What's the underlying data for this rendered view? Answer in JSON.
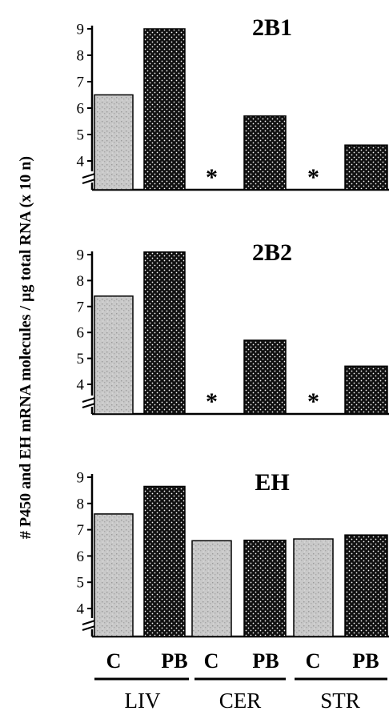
{
  "chart_data": {
    "type": "bar",
    "ylabel": "# P450 and EH mRNA molecules / µg total RNA (x 10 n)",
    "y_ticks": [
      "4",
      "5",
      "6",
      "7",
      "8",
      "9"
    ],
    "x_categories": [
      "C",
      "PB",
      "C",
      "PB",
      "C",
      "PB"
    ],
    "groups": [
      "LIV",
      "CER",
      "STR"
    ],
    "group_members": [
      [
        0,
        1
      ],
      [
        2,
        3
      ],
      [
        4,
        5
      ]
    ],
    "treatment_patterns": {
      "C": "grey-stipple",
      "PB": "black-dots"
    },
    "ylim": [
      3.3,
      9.3
    ],
    "axis_break": true,
    "not_detected_marker": "*",
    "panels": [
      {
        "title": "2B1",
        "values": [
          6.5,
          9.0,
          null,
          5.7,
          null,
          4.6
        ]
      },
      {
        "title": "2B2",
        "values": [
          7.4,
          9.1,
          null,
          5.7,
          null,
          4.7
        ]
      },
      {
        "title": "EH",
        "values": [
          7.6,
          8.65,
          6.58,
          6.6,
          6.65,
          6.8
        ]
      }
    ]
  }
}
